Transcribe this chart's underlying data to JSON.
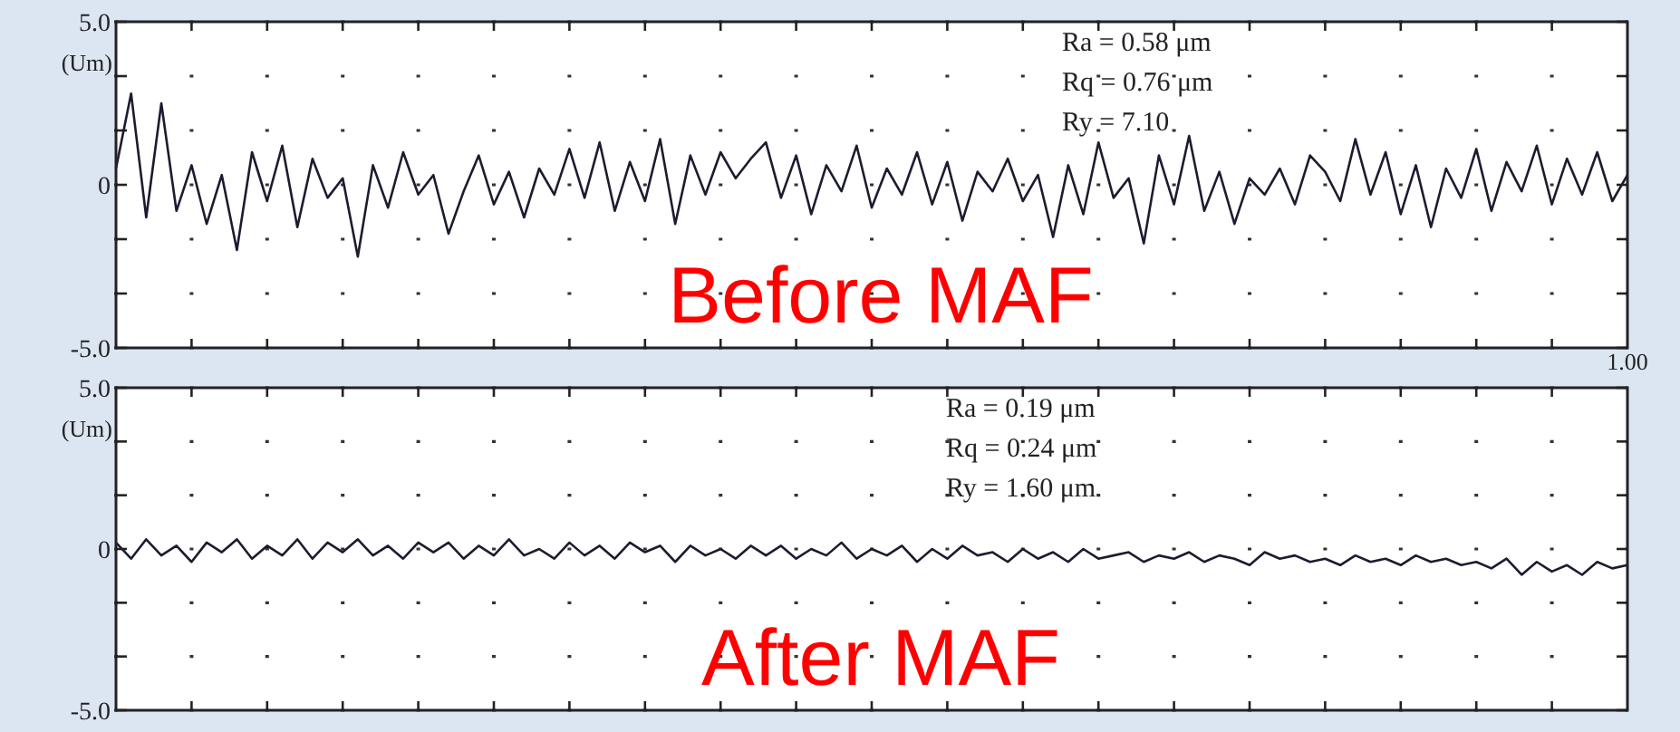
{
  "chart_data": [
    {
      "type": "line",
      "title": "Before MAF",
      "ylabel": "(Um)",
      "annotations": [
        "Ra = 0.58 μm",
        "Rq = 0.76 μm",
        "Ry = 7.10",
        "1.00"
      ],
      "categories": [
        null,
        null,
        null,
        null,
        null,
        null,
        null,
        null,
        null,
        null,
        null,
        null,
        null,
        null,
        null,
        null,
        null,
        null,
        null,
        null,
        null,
        null,
        null,
        null,
        null,
        null,
        null,
        null,
        null,
        null,
        null,
        null,
        null,
        null,
        null,
        null,
        null,
        null,
        null,
        null,
        null,
        null,
        null,
        null,
        null,
        null,
        null,
        null,
        null,
        null,
        null,
        null,
        null,
        null,
        null,
        null,
        null,
        null,
        null,
        null,
        null,
        null,
        null,
        null,
        null,
        null,
        null,
        null,
        null,
        null,
        null,
        null,
        null,
        null,
        null,
        null,
        null,
        null,
        null,
        null,
        null,
        null,
        null,
        null,
        null,
        null,
        null,
        null,
        null,
        null,
        null,
        null,
        null,
        null,
        null,
        null,
        null,
        null,
        null,
        null,
        null
      ],
      "series": [
        {
          "color": "#1c1c30",
          "values": [
            0.5,
            2.8,
            -1.0,
            2.5,
            -0.8,
            0.6,
            -1.2,
            0.3,
            -2.0,
            1.0,
            -0.5,
            1.2,
            -1.3,
            0.8,
            -0.4,
            0.2,
            -2.2,
            0.6,
            -0.7,
            1.0,
            -0.3,
            0.3,
            -1.5,
            -0.2,
            0.9,
            -0.6,
            0.4,
            -1.0,
            0.5,
            -0.3,
            1.1,
            -0.4,
            1.3,
            -0.8,
            0.7,
            -0.5,
            1.4,
            -1.2,
            0.9,
            -0.3,
            1.0,
            0.2,
            0.8,
            1.3,
            -0.4,
            0.9,
            -0.9,
            0.6,
            -0.2,
            1.2,
            -0.7,
            0.5,
            -0.3,
            1.0,
            -0.6,
            0.7,
            -1.1,
            0.4,
            -0.2,
            0.8,
            -0.5,
            0.3,
            -1.6,
            0.6,
            -0.9,
            1.3,
            -0.4,
            0.2,
            -1.8,
            0.9,
            -0.6,
            1.5,
            -0.8,
            0.4,
            -1.2,
            0.2,
            -0.3,
            0.5,
            -0.6,
            0.9,
            0.4,
            -0.5,
            1.4,
            -0.3,
            1.0,
            -0.9,
            0.6,
            -1.3,
            0.5,
            -0.4,
            1.1,
            -0.8,
            0.7,
            -0.2,
            1.2,
            -0.6,
            0.8,
            -0.3,
            1.0,
            -0.5,
            0.3
          ]
        }
      ],
      "ylim": [
        -5,
        5
      ],
      "yticks": [
        {
          "value": -5,
          "label": "-5.0"
        },
        {
          "value": -3.333,
          "label": null
        },
        {
          "value": -1.667,
          "label": null
        },
        0,
        {
          "value": 1.667,
          "label": null
        },
        {
          "value": 3.333,
          "label": null
        },
        {
          "value": 5,
          "label": "5.0"
        }
      ],
      "grid": "y"
    },
    {
      "type": "line",
      "title": "After MAF",
      "ylabel": "(Um)",
      "annotations": [
        "Ra = 0.19 μm",
        "Rq = 0.24 μm",
        "Ry = 1.60 μm"
      ],
      "categories": [
        null,
        null,
        null,
        null,
        null,
        null,
        null,
        null,
        null,
        null,
        null,
        null,
        null,
        null,
        null,
        null,
        null,
        null,
        null,
        null,
        null,
        null,
        null,
        null,
        null,
        null,
        null,
        null,
        null,
        null,
        null,
        null,
        null,
        null,
        null,
        null,
        null,
        null,
        null,
        null,
        null,
        null,
        null,
        null,
        null,
        null,
        null,
        null,
        null,
        null,
        null,
        null,
        null,
        null,
        null,
        null,
        null,
        null,
        null,
        null,
        null,
        null,
        null,
        null,
        null,
        null,
        null,
        null,
        null,
        null,
        null,
        null,
        null,
        null,
        null,
        null,
        null,
        null,
        null,
        null,
        null,
        null,
        null,
        null,
        null,
        null,
        null,
        null,
        null,
        null,
        null,
        null,
        null,
        null,
        null,
        null,
        null,
        null,
        null,
        null,
        null
      ],
      "series": [
        {
          "color": "#1c1c30",
          "values": [
            0.2,
            -0.3,
            0.3,
            -0.2,
            0.1,
            -0.4,
            0.2,
            -0.1,
            0.3,
            -0.3,
            0.1,
            -0.2,
            0.3,
            -0.3,
            0.2,
            -0.1,
            0.3,
            -0.2,
            0.1,
            -0.3,
            0.2,
            -0.1,
            0.2,
            -0.3,
            0.1,
            -0.2,
            0.3,
            -0.2,
            0.0,
            -0.3,
            0.2,
            -0.2,
            0.1,
            -0.3,
            0.2,
            -0.1,
            0.1,
            -0.4,
            0.1,
            -0.2,
            0.0,
            -0.3,
            0.1,
            -0.2,
            0.1,
            -0.3,
            0.0,
            -0.2,
            0.2,
            -0.3,
            0.0,
            -0.2,
            0.1,
            -0.4,
            0.0,
            -0.3,
            0.1,
            -0.2,
            -0.1,
            -0.4,
            0.0,
            -0.3,
            -0.1,
            -0.4,
            0.0,
            -0.3,
            -0.2,
            -0.1,
            -0.4,
            -0.2,
            -0.3,
            -0.1,
            -0.4,
            -0.2,
            -0.3,
            -0.5,
            -0.1,
            -0.3,
            -0.2,
            -0.4,
            -0.3,
            -0.5,
            -0.2,
            -0.4,
            -0.3,
            -0.5,
            -0.2,
            -0.4,
            -0.3,
            -0.5,
            -0.4,
            -0.6,
            -0.3,
            -0.8,
            -0.4,
            -0.7,
            -0.5,
            -0.8,
            -0.4,
            -0.6,
            -0.5
          ]
        }
      ],
      "ylim": [
        -5,
        5
      ],
      "yticks": [
        {
          "value": -5,
          "label": "-5.0"
        },
        {
          "value": -3.333,
          "label": null
        },
        {
          "value": -1.667,
          "label": null
        },
        0,
        {
          "value": 1.667,
          "label": null
        },
        {
          "value": 3.333,
          "label": null
        },
        {
          "value": 5,
          "label": "5.0"
        }
      ],
      "grid": "y"
    }
  ]
}
